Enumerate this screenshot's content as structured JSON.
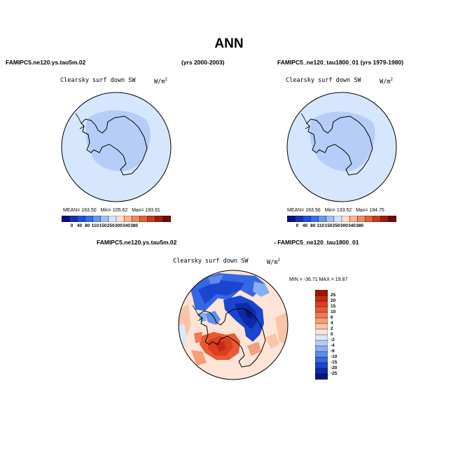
{
  "season": "ANN",
  "panel1": {
    "case": "FAMIPC5.ne120.ys.tau5m.02",
    "years": "(yrs 2000-2003)",
    "variable": "Clearsky surf down SW",
    "units_base": "W/m",
    "units_exp": "2",
    "mean_label": "MEAN= 163.50",
    "min_label": "Min= 105.62",
    "max_label": "Max= 193.91"
  },
  "panel2": {
    "case": "FAMIPC5_ne120_tau1800_01 (yrs 1979-1980)",
    "variable": "Clearsky surf down SW",
    "units_base": "W/m",
    "units_exp": "2",
    "mean_label": "MEAN= 163.56",
    "min_label": "Min= 133.52",
    "max_label": "Max= 194.75"
  },
  "panel3": {
    "case_a": "FAMIPC5.ne120.ys.tau5m.02",
    "case_b": "- FAMIPC5_ne120_tau1800_01",
    "variable": "Clearsky surf down SW",
    "units_base": "W/m",
    "units_exp": "2",
    "minmax_label": "MIN = -36.71  MAX =  19.87"
  },
  "colorbar_main": {
    "labels": [
      "0",
      "40",
      "80",
      "110",
      "150",
      "250",
      "300",
      "340",
      "380"
    ],
    "colors": [
      "#0a0f7a",
      "#1530b0",
      "#1f4fd8",
      "#3a6ee8",
      "#6d95ee",
      "#a4bff5",
      "#d4e3fb",
      "#fde0cf",
      "#f6b597",
      "#ef8a63",
      "#e2603a",
      "#c83a1a",
      "#9e1c0c",
      "#6e0a05"
    ]
  },
  "colorbar_diff": {
    "labels": [
      "25",
      "20",
      "15",
      "10",
      "6",
      "4",
      "2",
      "0",
      "-2",
      "-4",
      "-6",
      "-10",
      "-15",
      "-20",
      "-25"
    ],
    "colors": [
      "#a01706",
      "#c42a12",
      "#dc3f1e",
      "#e85a34",
      "#f07a52",
      "#f59e78",
      "#f9c4a8",
      "#fde4d6",
      "#dbe8fb",
      "#b2ccf6",
      "#8aaef1",
      "#5f8ceb",
      "#3467e2",
      "#1a45cf",
      "#0f2aa8",
      "#061a7a"
    ]
  },
  "colors": {
    "land_main": "#b6cdf7",
    "ocean_main": "#d6e6fd",
    "diff_background": "#fde4d6"
  }
}
